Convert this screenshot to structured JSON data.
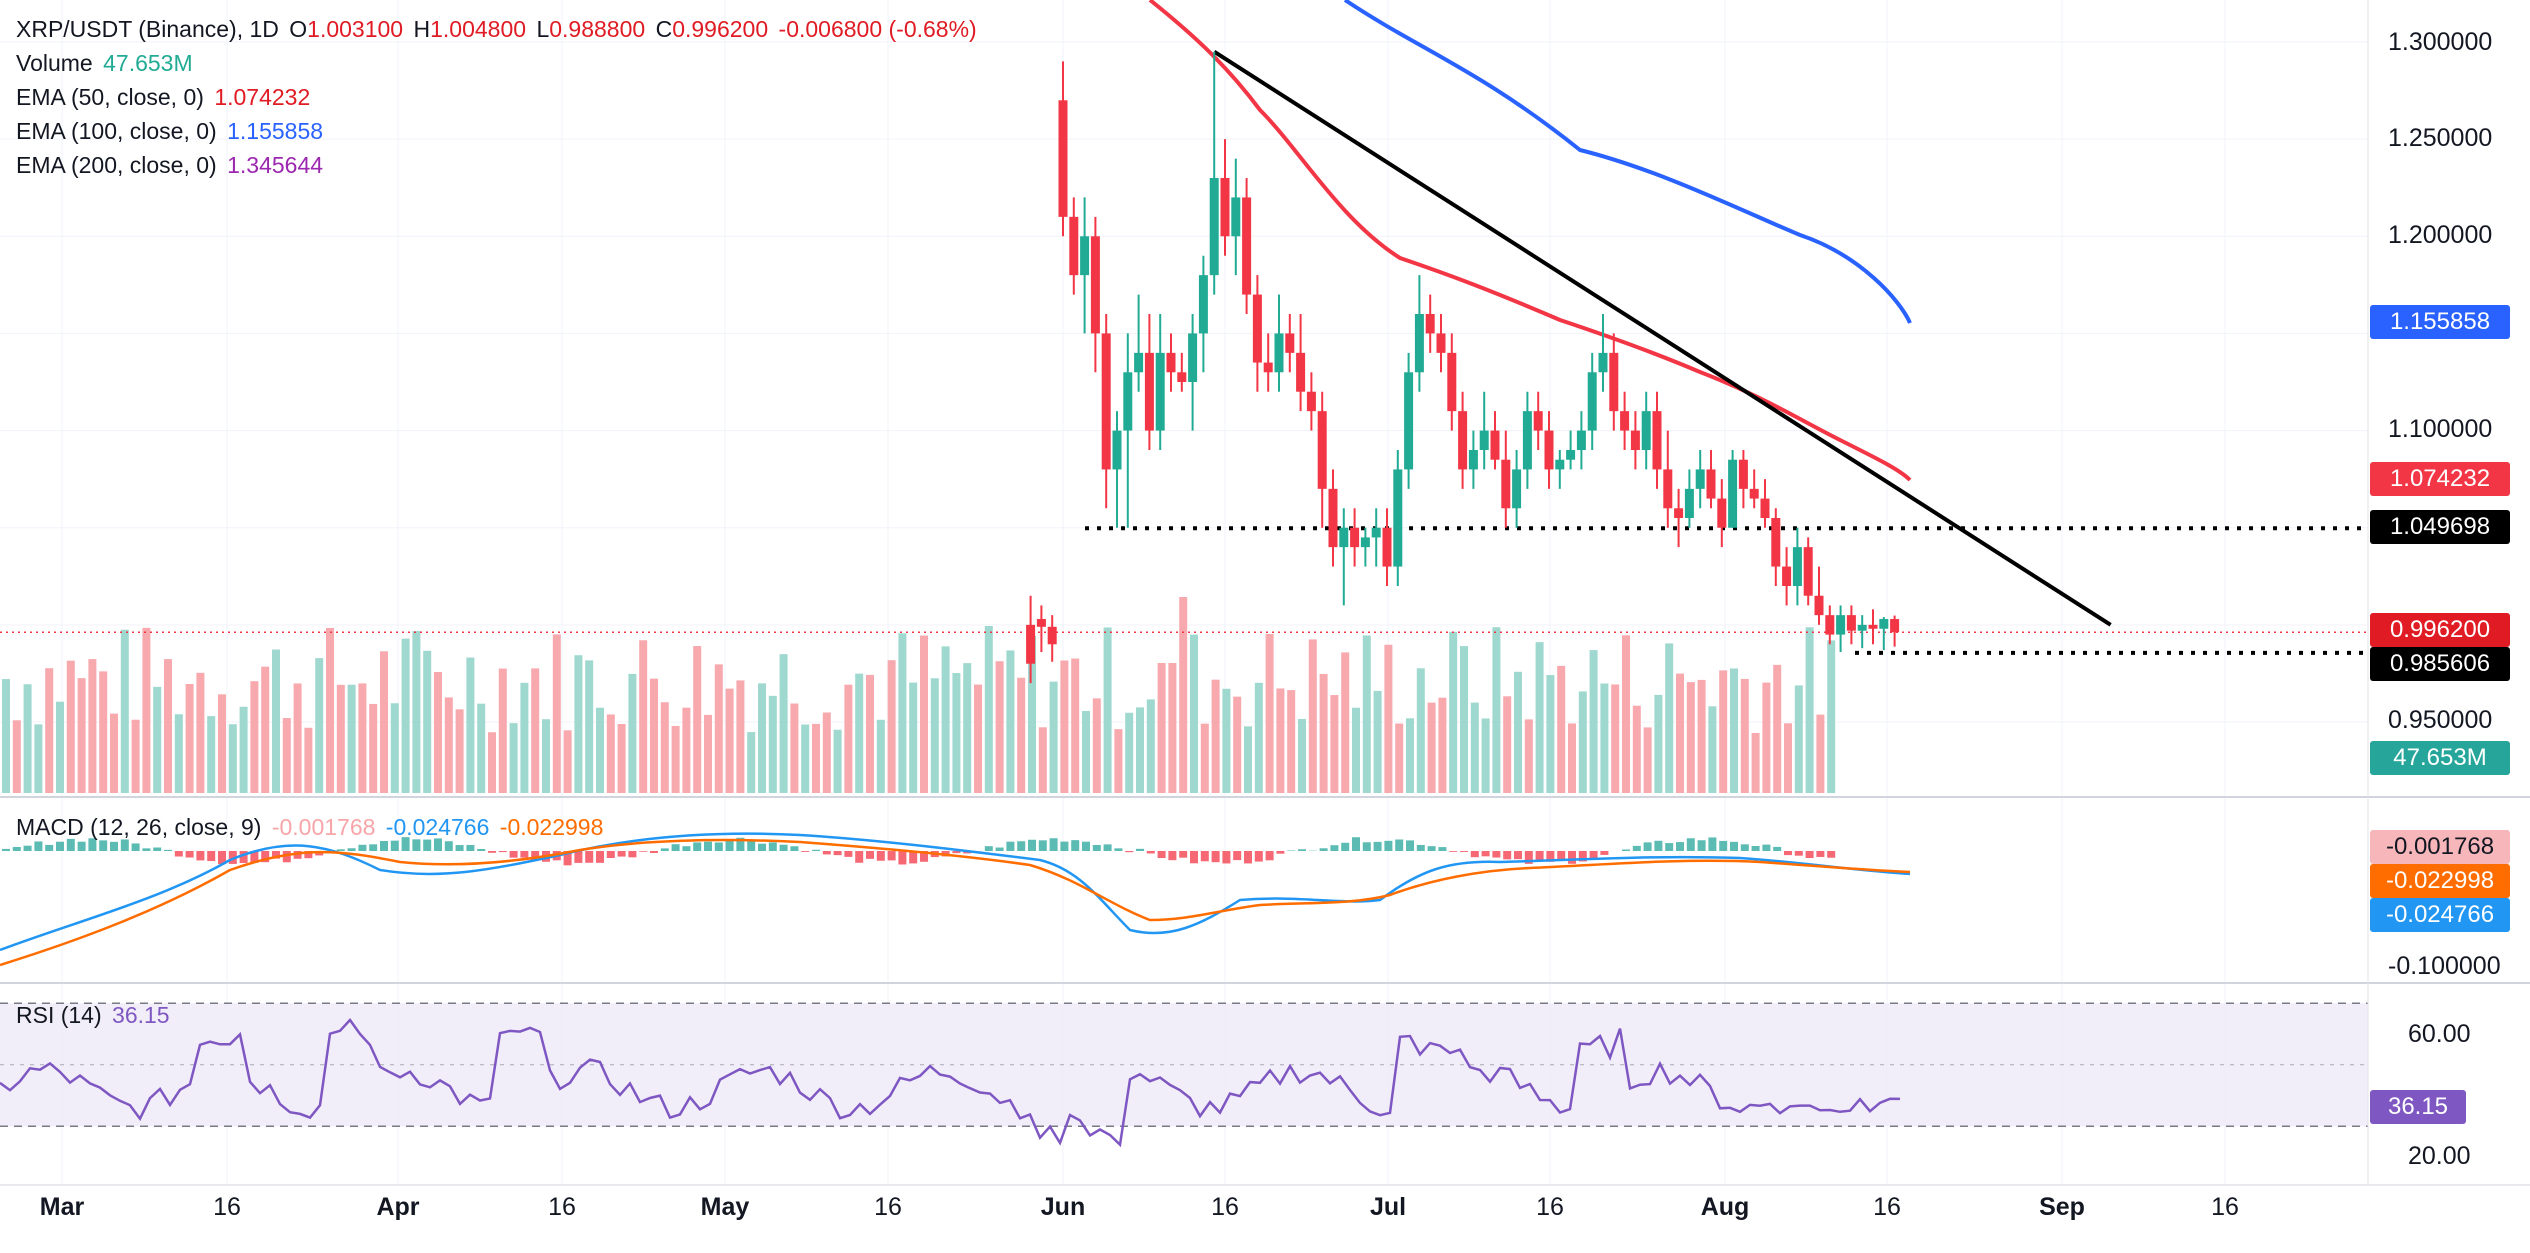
{
  "header": {
    "symbol": "XRP/USDT (Binance), 1D",
    "o_label": "O",
    "o_value": "1.003100",
    "h_label": "H",
    "h_value": "1.004800",
    "l_label": "L",
    "l_value": "0.988800",
    "c_label": "C",
    "c_value": "0.996200",
    "change": "-0.006800 (-0.68%)"
  },
  "legend": {
    "volume_label": "Volume",
    "volume_value": "47.653M",
    "ema50_label": "EMA (50, close, 0)",
    "ema50_value": "1.074232",
    "ema100_label": "EMA (100, close, 0)",
    "ema100_value": "1.155858",
    "ema200_label": "EMA (200, close, 0)",
    "ema200_value": "1.345644",
    "macd_label": "MACD (12, 26, close, 9)",
    "macd_hist": "-0.001768",
    "macd_line": "-0.024766",
    "macd_signal": "-0.022998",
    "rsi_label": "RSI (14)",
    "rsi_value": "36.15"
  },
  "price_axis": [
    "1.300000",
    "1.250000",
    "1.200000",
    "1.100000",
    "0.950000"
  ],
  "macd_axis": [
    "-0.100000"
  ],
  "rsi_axis": [
    "60.00",
    "20.00"
  ],
  "tags": {
    "ema100": "1.155858",
    "ema50": "1.074232",
    "support_high": "1.049698",
    "close": "0.996200",
    "support_low": "0.985606",
    "volume": "47.653M",
    "macd_hist": "-0.001768",
    "macd_signal": "-0.022998",
    "macd_line": "-0.024766",
    "rsi": "36.15"
  },
  "time_axis": [
    "Mar",
    "16",
    "Apr",
    "16",
    "May",
    "16",
    "Jun",
    "16",
    "Jul",
    "16",
    "Aug",
    "16",
    "Sep",
    "16"
  ],
  "colors": {
    "up": "#22ab94",
    "down": "#f23645",
    "ema50": "#f23645",
    "ema100": "#2962ff",
    "macd": "#2196f3",
    "signal": "#ff6d00",
    "rsi": "#7e57c2"
  },
  "chart_data": {
    "type": "candlestick",
    "symbol": "XRP/USDT",
    "interval": "1D",
    "price_range": [
      0.915,
      1.32
    ],
    "candles": [
      {
        "date": "2022-05-29",
        "o": 1.0,
        "h": 1.015,
        "l": 0.97,
        "c": 0.98
      },
      {
        "date": "2022-05-30",
        "o": 1.003,
        "h": 1.01,
        "l": 0.986,
        "c": 0.999
      },
      {
        "date": "2022-05-31",
        "o": 0.999,
        "h": 1.005,
        "l": 0.981,
        "c": 0.99
      },
      {
        "date": "2022-06-01",
        "o": 1.27,
        "h": 1.29,
        "l": 1.2,
        "c": 1.21
      },
      {
        "date": "2022-06-02",
        "o": 1.21,
        "h": 1.22,
        "l": 1.17,
        "c": 1.18
      },
      {
        "date": "2022-06-03",
        "o": 1.18,
        "h": 1.22,
        "l": 1.15,
        "c": 1.2
      },
      {
        "date": "2022-06-04",
        "o": 1.2,
        "h": 1.21,
        "l": 1.13,
        "c": 1.15
      },
      {
        "date": "2022-06-05",
        "o": 1.15,
        "h": 1.16,
        "l": 1.06,
        "c": 1.08
      },
      {
        "date": "2022-06-06",
        "o": 1.08,
        "h": 1.11,
        "l": 1.05,
        "c": 1.1
      },
      {
        "date": "2022-06-07",
        "o": 1.1,
        "h": 1.15,
        "l": 1.05,
        "c": 1.13
      },
      {
        "date": "2022-06-08",
        "o": 1.13,
        "h": 1.17,
        "l": 1.12,
        "c": 1.14
      },
      {
        "date": "2022-06-09",
        "o": 1.14,
        "h": 1.16,
        "l": 1.09,
        "c": 1.1
      },
      {
        "date": "2022-06-10",
        "o": 1.1,
        "h": 1.16,
        "l": 1.09,
        "c": 1.14
      },
      {
        "date": "2022-06-11",
        "o": 1.14,
        "h": 1.15,
        "l": 1.12,
        "c": 1.13
      },
      {
        "date": "2022-06-12",
        "o": 1.13,
        "h": 1.14,
        "l": 1.12,
        "c": 1.125
      },
      {
        "date": "2022-06-13",
        "o": 1.125,
        "h": 1.16,
        "l": 1.1,
        "c": 1.15
      },
      {
        "date": "2022-06-14",
        "o": 1.15,
        "h": 1.19,
        "l": 1.13,
        "c": 1.18
      },
      {
        "date": "2022-06-15",
        "o": 1.18,
        "h": 1.295,
        "l": 1.17,
        "c": 1.23
      },
      {
        "date": "2022-06-16",
        "o": 1.23,
        "h": 1.25,
        "l": 1.19,
        "c": 1.2
      },
      {
        "date": "2022-06-17",
        "o": 1.2,
        "h": 1.24,
        "l": 1.18,
        "c": 1.22
      },
      {
        "date": "2022-06-18",
        "o": 1.22,
        "h": 1.23,
        "l": 1.16,
        "c": 1.17
      },
      {
        "date": "2022-06-19",
        "o": 1.17,
        "h": 1.18,
        "l": 1.12,
        "c": 1.135
      },
      {
        "date": "2022-06-20",
        "o": 1.135,
        "h": 1.15,
        "l": 1.12,
        "c": 1.13
      },
      {
        "date": "2022-06-21",
        "o": 1.13,
        "h": 1.17,
        "l": 1.12,
        "c": 1.15
      },
      {
        "date": "2022-06-22",
        "o": 1.15,
        "h": 1.16,
        "l": 1.13,
        "c": 1.14
      },
      {
        "date": "2022-06-23",
        "o": 1.14,
        "h": 1.16,
        "l": 1.11,
        "c": 1.12
      },
      {
        "date": "2022-06-24",
        "o": 1.12,
        "h": 1.13,
        "l": 1.1,
        "c": 1.11
      },
      {
        "date": "2022-06-25",
        "o": 1.11,
        "h": 1.12,
        "l": 1.05,
        "c": 1.07
      },
      {
        "date": "2022-06-26",
        "o": 1.07,
        "h": 1.08,
        "l": 1.03,
        "c": 1.04
      },
      {
        "date": "2022-06-27",
        "o": 1.04,
        "h": 1.06,
        "l": 1.01,
        "c": 1.05
      },
      {
        "date": "2022-06-28",
        "o": 1.05,
        "h": 1.06,
        "l": 1.03,
        "c": 1.04
      },
      {
        "date": "2022-06-29",
        "o": 1.04,
        "h": 1.05,
        "l": 1.03,
        "c": 1.045
      },
      {
        "date": "2022-06-30",
        "o": 1.045,
        "h": 1.06,
        "l": 1.03,
        "c": 1.05
      },
      {
        "date": "2022-07-01",
        "o": 1.05,
        "h": 1.06,
        "l": 1.02,
        "c": 1.03
      },
      {
        "date": "2022-07-02",
        "o": 1.03,
        "h": 1.09,
        "l": 1.02,
        "c": 1.08
      },
      {
        "date": "2022-07-03",
        "o": 1.08,
        "h": 1.14,
        "l": 1.07,
        "c": 1.13
      },
      {
        "date": "2022-07-04",
        "o": 1.13,
        "h": 1.18,
        "l": 1.12,
        "c": 1.16
      },
      {
        "date": "2022-07-05",
        "o": 1.16,
        "h": 1.17,
        "l": 1.14,
        "c": 1.15
      },
      {
        "date": "2022-07-06",
        "o": 1.15,
        "h": 1.16,
        "l": 1.13,
        "c": 1.14
      },
      {
        "date": "2022-07-07",
        "o": 1.14,
        "h": 1.15,
        "l": 1.1,
        "c": 1.11
      },
      {
        "date": "2022-07-08",
        "o": 1.11,
        "h": 1.12,
        "l": 1.07,
        "c": 1.08
      },
      {
        "date": "2022-07-09",
        "o": 1.08,
        "h": 1.1,
        "l": 1.07,
        "c": 1.09
      },
      {
        "date": "2022-07-10",
        "o": 1.09,
        "h": 1.12,
        "l": 1.08,
        "c": 1.1
      },
      {
        "date": "2022-07-11",
        "o": 1.1,
        "h": 1.11,
        "l": 1.08,
        "c": 1.085
      },
      {
        "date": "2022-07-12",
        "o": 1.085,
        "h": 1.1,
        "l": 1.05,
        "c": 1.06
      },
      {
        "date": "2022-07-13",
        "o": 1.06,
        "h": 1.09,
        "l": 1.05,
        "c": 1.08
      },
      {
        "date": "2022-07-14",
        "o": 1.08,
        "h": 1.12,
        "l": 1.07,
        "c": 1.11
      },
      {
        "date": "2022-07-15",
        "o": 1.11,
        "h": 1.12,
        "l": 1.09,
        "c": 1.1
      },
      {
        "date": "2022-07-16",
        "o": 1.1,
        "h": 1.11,
        "l": 1.07,
        "c": 1.08
      },
      {
        "date": "2022-07-17",
        "o": 1.08,
        "h": 1.09,
        "l": 1.07,
        "c": 1.085
      },
      {
        "date": "2022-07-18",
        "o": 1.085,
        "h": 1.1,
        "l": 1.08,
        "c": 1.09
      },
      {
        "date": "2022-07-19",
        "o": 1.09,
        "h": 1.11,
        "l": 1.08,
        "c": 1.1
      },
      {
        "date": "2022-07-20",
        "o": 1.1,
        "h": 1.14,
        "l": 1.09,
        "c": 1.13
      },
      {
        "date": "2022-07-21",
        "o": 1.13,
        "h": 1.16,
        "l": 1.12,
        "c": 1.14
      },
      {
        "date": "2022-07-22",
        "o": 1.14,
        "h": 1.15,
        "l": 1.1,
        "c": 1.11
      },
      {
        "date": "2022-07-23",
        "o": 1.11,
        "h": 1.12,
        "l": 1.09,
        "c": 1.1
      },
      {
        "date": "2022-07-24",
        "o": 1.1,
        "h": 1.11,
        "l": 1.08,
        "c": 1.09
      },
      {
        "date": "2022-07-25",
        "o": 1.09,
        "h": 1.12,
        "l": 1.08,
        "c": 1.11
      },
      {
        "date": "2022-07-26",
        "o": 1.11,
        "h": 1.12,
        "l": 1.07,
        "c": 1.08
      },
      {
        "date": "2022-07-27",
        "o": 1.08,
        "h": 1.1,
        "l": 1.05,
        "c": 1.06
      },
      {
        "date": "2022-07-28",
        "o": 1.06,
        "h": 1.07,
        "l": 1.04,
        "c": 1.055
      },
      {
        "date": "2022-07-29",
        "o": 1.055,
        "h": 1.08,
        "l": 1.05,
        "c": 1.07
      },
      {
        "date": "2022-07-30",
        "o": 1.07,
        "h": 1.09,
        "l": 1.06,
        "c": 1.08
      },
      {
        "date": "2022-07-31",
        "o": 1.08,
        "h": 1.09,
        "l": 1.06,
        "c": 1.065
      },
      {
        "date": "2022-08-01",
        "o": 1.065,
        "h": 1.075,
        "l": 1.04,
        "c": 1.05
      },
      {
        "date": "2022-08-02",
        "o": 1.05,
        "h": 1.09,
        "l": 1.05,
        "c": 1.085
      },
      {
        "date": "2022-08-03",
        "o": 1.085,
        "h": 1.09,
        "l": 1.06,
        "c": 1.07
      },
      {
        "date": "2022-08-04",
        "o": 1.07,
        "h": 1.08,
        "l": 1.06,
        "c": 1.065
      },
      {
        "date": "2022-08-05",
        "o": 1.065,
        "h": 1.075,
        "l": 1.05,
        "c": 1.055
      },
      {
        "date": "2022-08-06",
        "o": 1.055,
        "h": 1.06,
        "l": 1.02,
        "c": 1.03
      },
      {
        "date": "2022-08-07",
        "o": 1.03,
        "h": 1.04,
        "l": 1.01,
        "c": 1.02
      },
      {
        "date": "2022-08-08",
        "o": 1.02,
        "h": 1.05,
        "l": 1.01,
        "c": 1.04
      },
      {
        "date": "2022-08-09",
        "o": 1.04,
        "h": 1.045,
        "l": 1.01,
        "c": 1.015
      },
      {
        "date": "2022-08-10",
        "o": 1.015,
        "h": 1.03,
        "l": 1.0,
        "c": 1.005
      },
      {
        "date": "2022-08-11",
        "o": 1.005,
        "h": 1.01,
        "l": 0.99,
        "c": 0.995
      },
      {
        "date": "2022-08-12",
        "o": 0.995,
        "h": 1.01,
        "l": 0.986,
        "c": 1.005
      },
      {
        "date": "2022-08-13",
        "o": 1.005,
        "h": 1.01,
        "l": 0.99,
        "c": 0.997
      },
      {
        "date": "2022-08-14",
        "o": 0.997,
        "h": 1.005,
        "l": 0.988,
        "c": 1.0
      },
      {
        "date": "2022-08-15",
        "o": 1.0,
        "h": 1.008,
        "l": 0.99,
        "c": 0.998
      },
      {
        "date": "2022-08-16",
        "o": 0.998,
        "h": 1.004,
        "l": 0.987,
        "c": 1.003
      },
      {
        "date": "2022-08-17",
        "o": 1.003,
        "h": 1.0048,
        "l": 0.9888,
        "c": 0.9962
      }
    ],
    "horizontal_levels": [
      1.049698,
      0.985606
    ],
    "trendline": [
      {
        "date": "2022-06-15",
        "value": 1.295
      },
      {
        "date": "2022-09-06",
        "value": 1.0
      }
    ],
    "ema50_current": 1.074232,
    "ema100_current": 1.155858,
    "ema200_current": 1.345644,
    "volume_current": "47.653M",
    "macd": {
      "hist": -0.001768,
      "macd": -0.024766,
      "signal": -0.022998
    },
    "rsi": {
      "value": 36.15,
      "bands": [
        70,
        30
      ],
      "ticks": [
        60,
        20
      ]
    }
  }
}
